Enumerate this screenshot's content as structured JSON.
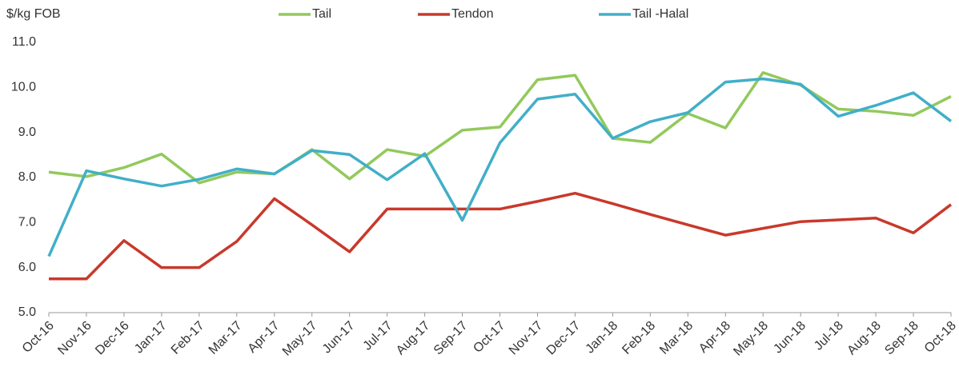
{
  "chart_data": {
    "type": "line",
    "y_label": "$/kg FOB",
    "categories": [
      "Oct-16",
      "Nov-16",
      "Dec-16",
      "Jan-17",
      "Feb-17",
      "Mar-17",
      "Apr-17",
      "May-17",
      "Jun-17",
      "Jul-17",
      "Aug-17",
      "Sep-17",
      "Oct-17",
      "Nov-17",
      "Dec-17",
      "Jan-18",
      "Feb-18",
      "Mar-18",
      "Apr-18",
      "May-18",
      "Jun-18",
      "Jul-18",
      "Aug-18",
      "Sep-18",
      "Oct-18"
    ],
    "series": [
      {
        "name": "Tail",
        "color": "#92c95c",
        "values": [
          8.12,
          8.02,
          8.22,
          8.52,
          7.88,
          8.12,
          8.08,
          8.62,
          7.97,
          8.62,
          8.47,
          9.05,
          9.12,
          10.17,
          10.27,
          8.87,
          8.78,
          9.42,
          9.1,
          10.33,
          10.05,
          9.52,
          9.47,
          9.38,
          9.8
        ]
      },
      {
        "name": "Tendon",
        "color": "#c8392b",
        "values": [
          5.75,
          5.75,
          6.6,
          6.0,
          6.0,
          6.58,
          7.53,
          6.95,
          6.35,
          7.3,
          7.3,
          7.3,
          7.3,
          7.47,
          7.65,
          7.42,
          7.18,
          6.95,
          6.72,
          6.87,
          7.02,
          7.06,
          7.1,
          6.77,
          7.4
        ]
      },
      {
        "name": "Tail -Halal",
        "color": "#41afc8",
        "values": [
          6.25,
          8.15,
          7.97,
          7.81,
          7.96,
          8.19,
          8.08,
          8.6,
          8.51,
          7.95,
          8.53,
          7.05,
          8.77,
          9.74,
          9.85,
          8.87,
          9.24,
          9.44,
          10.12,
          10.19,
          10.07,
          9.36,
          9.6,
          9.88,
          9.25
        ]
      }
    ],
    "ylim": [
      5,
      11
    ],
    "yticks": [
      {
        "value": 5,
        "label": "5.0"
      },
      {
        "value": 6,
        "label": "6.0"
      },
      {
        "value": 7,
        "label": "7.0"
      },
      {
        "value": 8,
        "label": "8.0"
      },
      {
        "value": 9,
        "label": "9.0"
      },
      {
        "value": 10,
        "label": "10.0"
      },
      {
        "value": 11,
        "label": "11.0"
      }
    ],
    "grid": false,
    "legend": "top"
  }
}
